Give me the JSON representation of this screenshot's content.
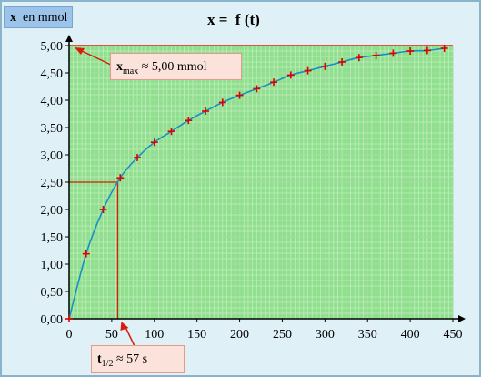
{
  "chart_data": {
    "type": "scatter",
    "title": "x =  f (t)",
    "ylabel_var": "x",
    "ylabel_unit": "en mmol",
    "xlim": [
      0,
      450
    ],
    "ylim": [
      0,
      5
    ],
    "x_ticks": [
      "0",
      "50",
      "100",
      "150",
      "200",
      "250",
      "300",
      "350",
      "400",
      "450"
    ],
    "y_ticks": [
      "0,00",
      "0,50",
      "1,00",
      "1,50",
      "2,00",
      "2,50",
      "3,00",
      "3,50",
      "4,00",
      "4,50",
      "5,00"
    ],
    "grid": true,
    "series": [
      {
        "x": [
          0,
          20,
          40,
          60,
          80,
          100,
          120,
          140,
          160,
          180,
          200,
          220,
          240,
          260,
          280,
          300,
          320,
          340,
          360,
          380,
          400,
          420,
          440
        ],
        "y": [
          0.0,
          1.19,
          2.0,
          2.58,
          2.95,
          3.23,
          3.43,
          3.63,
          3.8,
          3.96,
          4.09,
          4.21,
          4.33,
          4.46,
          4.54,
          4.62,
          4.7,
          4.78,
          4.82,
          4.86,
          4.9,
          4.91,
          4.95
        ]
      }
    ],
    "annotations": {
      "xmax": {
        "var": "x",
        "sub": "max",
        "text": " ≈ 5,00 mmol",
        "value": 5.0
      },
      "thalf": {
        "var": "t",
        "sub": "1/2",
        "text": " ≈ 57 s",
        "t_value": 57,
        "x_value": 2.5
      }
    },
    "colors": {
      "plot_bg": "#8ee08c",
      "grid_minor": "#c3ebc1",
      "grid_major": "#a8dca6",
      "curve": "#1a8fc4",
      "marker": "#e00000",
      "annotation_line": "#d81c0c",
      "axis": "#000000"
    }
  }
}
